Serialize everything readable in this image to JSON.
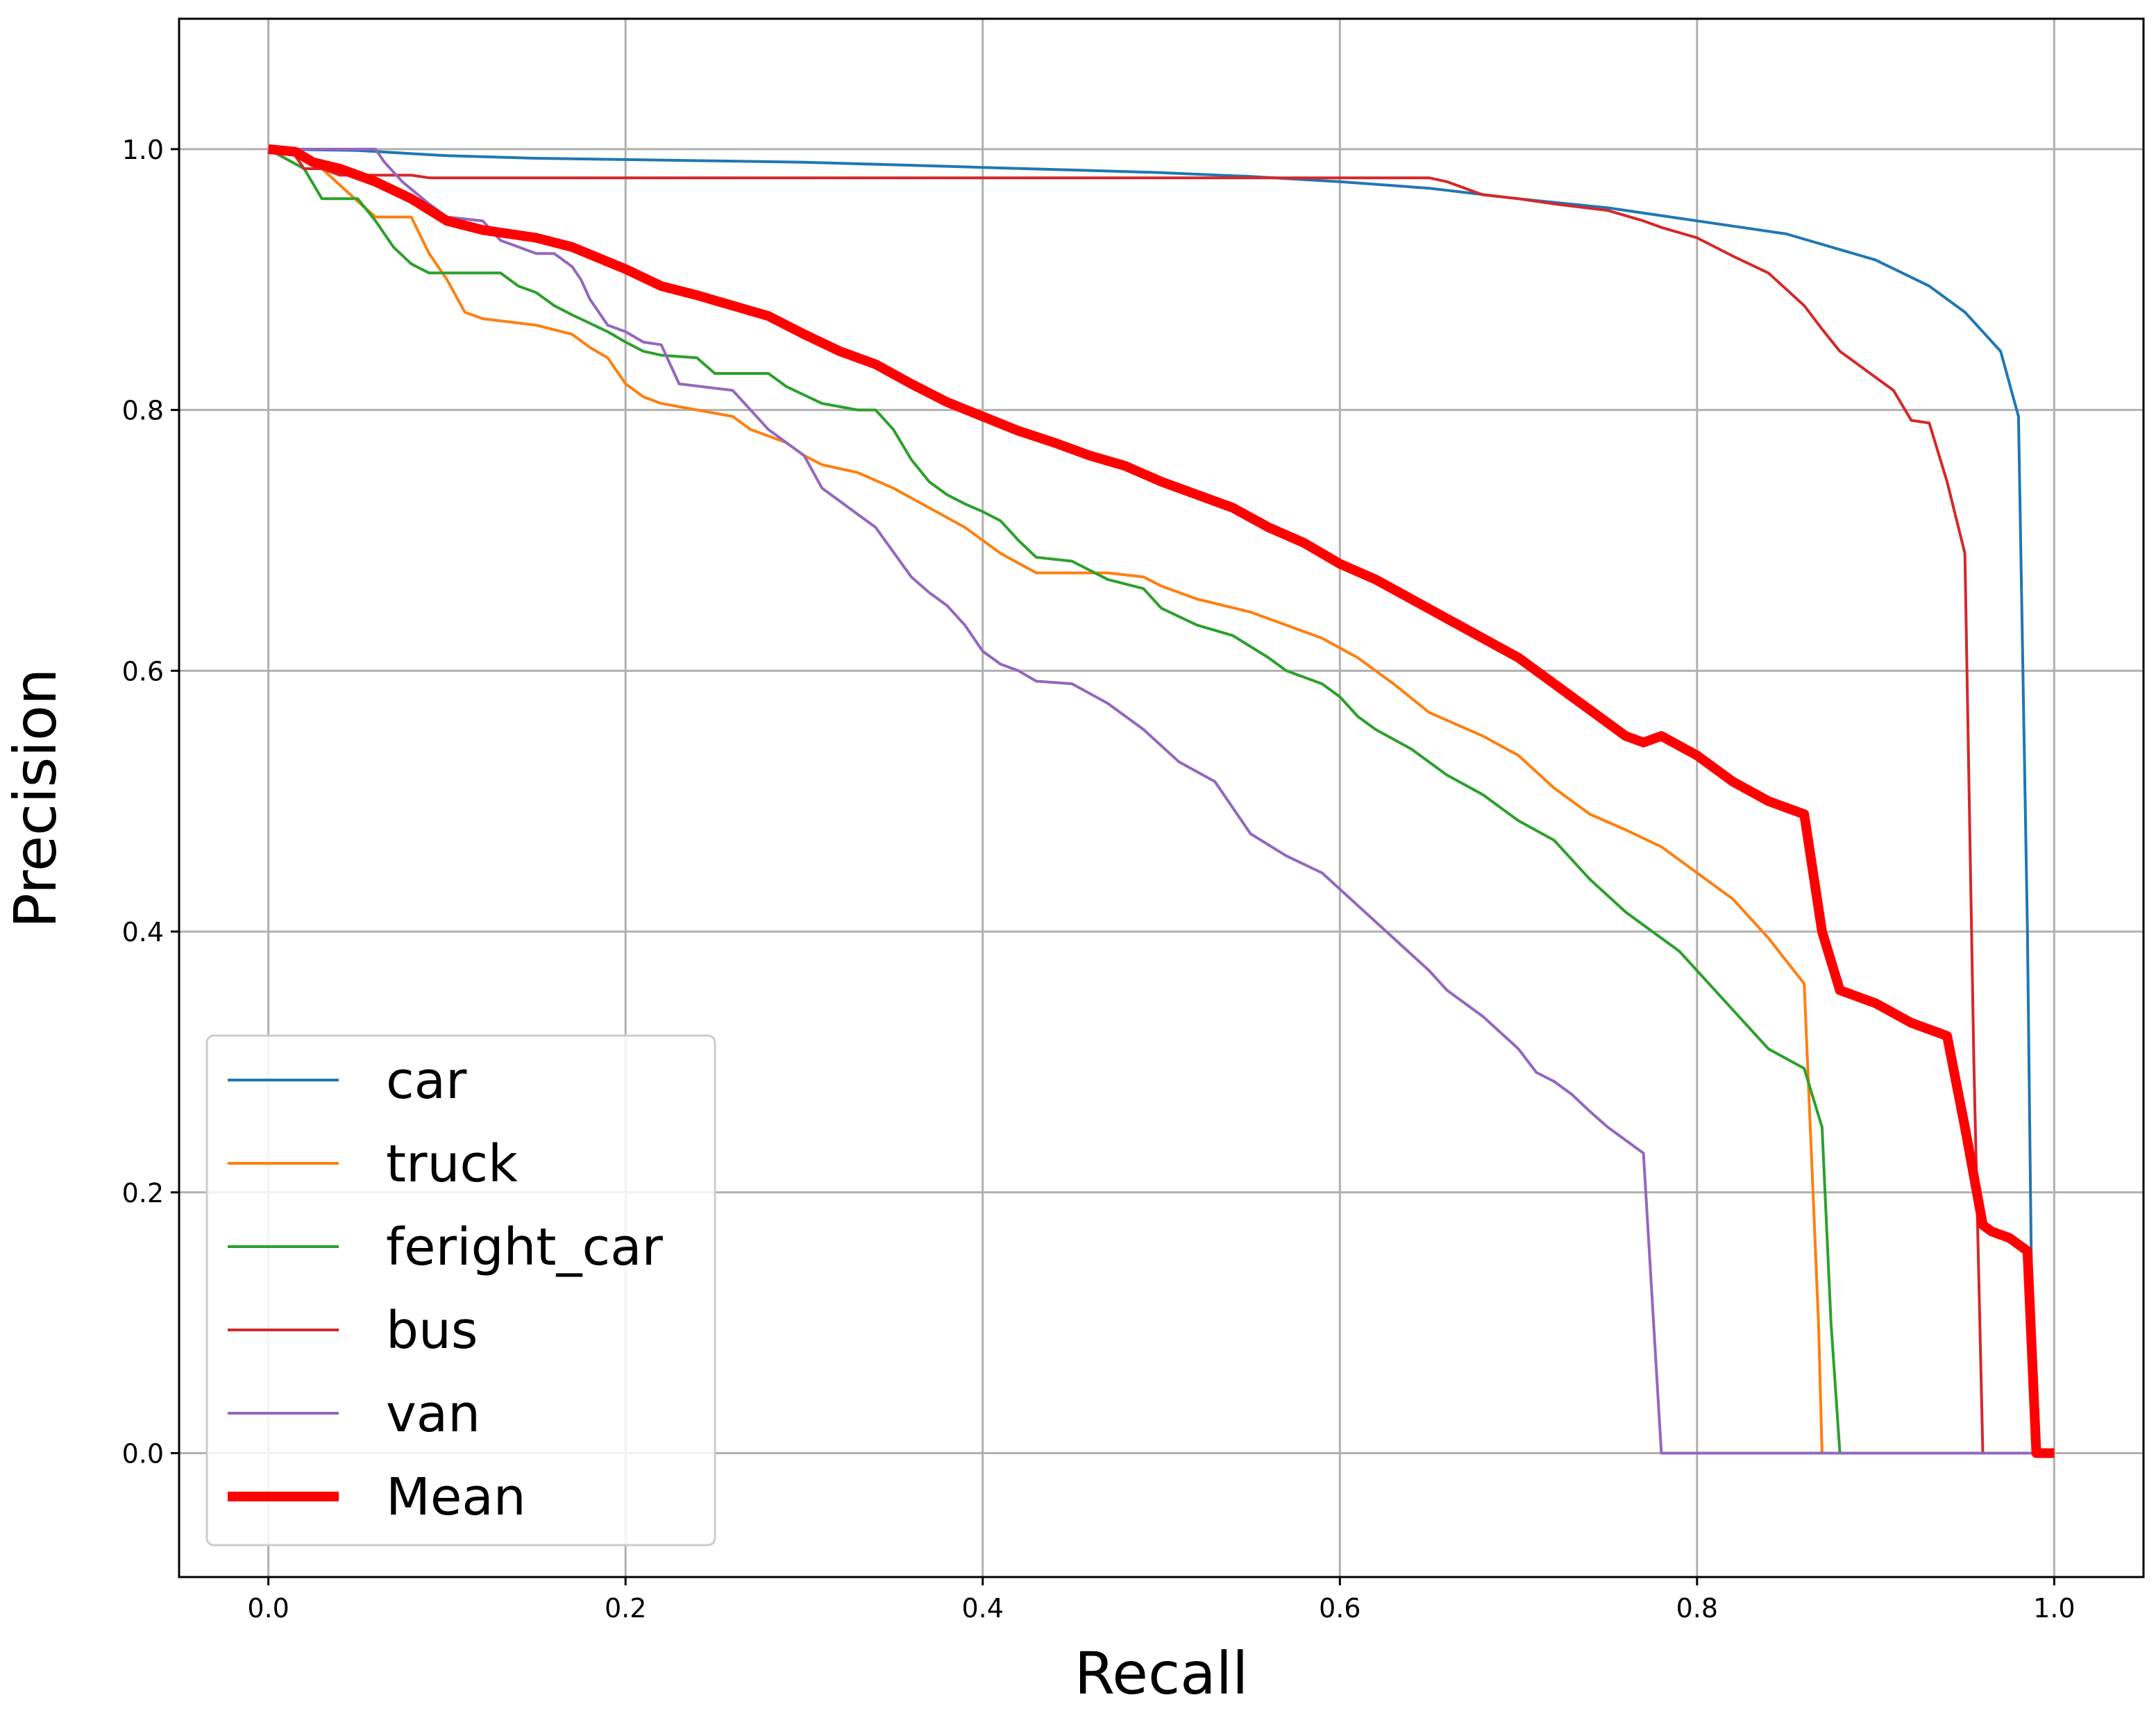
{
  "chart_data": {
    "type": "line",
    "title": "",
    "xlabel": "Recall",
    "ylabel": "Precision",
    "xlim": [
      -0.05,
      1.05
    ],
    "ylim": [
      -0.095,
      1.1
    ],
    "xticks": [
      "0.0",
      "0.2",
      "0.4",
      "0.6",
      "0.8",
      "1.0"
    ],
    "yticks": [
      "0.0",
      "0.2",
      "0.4",
      "0.6",
      "0.8",
      "1.0"
    ],
    "grid": true,
    "legend_position": "lower-left",
    "series": [
      {
        "name": "car",
        "color": "#1f77b4",
        "width": 4,
        "x": [
          0,
          0.05,
          0.1,
          0.15,
          0.2,
          0.25,
          0.3,
          0.35,
          0.4,
          0.45,
          0.5,
          0.55,
          0.6,
          0.65,
          0.7,
          0.75,
          0.8,
          0.85,
          0.9,
          0.93,
          0.95,
          0.97,
          0.98,
          0.985,
          0.988,
          0.99
        ],
        "y": [
          1.0,
          0.999,
          0.995,
          0.993,
          0.992,
          0.991,
          0.99,
          0.988,
          0.986,
          0.984,
          0.982,
          0.979,
          0.975,
          0.97,
          0.962,
          0.955,
          0.945,
          0.935,
          0.915,
          0.895,
          0.875,
          0.845,
          0.795,
          0.4,
          0.05,
          0.0
        ]
      },
      {
        "name": "truck",
        "color": "#ff7f0e",
        "width": 4,
        "x": [
          0,
          0.02,
          0.03,
          0.05,
          0.06,
          0.08,
          0.09,
          0.1,
          0.11,
          0.12,
          0.15,
          0.17,
          0.18,
          0.19,
          0.2,
          0.21,
          0.22,
          0.24,
          0.26,
          0.27,
          0.29,
          0.3,
          0.31,
          0.33,
          0.35,
          0.37,
          0.39,
          0.41,
          0.43,
          0.45,
          0.47,
          0.49,
          0.5,
          0.52,
          0.55,
          0.57,
          0.59,
          0.61,
          0.63,
          0.65,
          0.68,
          0.7,
          0.72,
          0.74,
          0.76,
          0.78,
          0.8,
          0.82,
          0.84,
          0.86,
          0.868,
          0.87,
          0.875,
          0.88,
          0.9,
          0.96,
          0.99,
          1.0
        ],
        "y": [
          1.0,
          0.985,
          0.985,
          0.96,
          0.948,
          0.948,
          0.92,
          0.9,
          0.875,
          0.87,
          0.865,
          0.858,
          0.848,
          0.84,
          0.82,
          0.81,
          0.805,
          0.8,
          0.795,
          0.785,
          0.775,
          0.765,
          0.758,
          0.752,
          0.74,
          0.725,
          0.71,
          0.69,
          0.675,
          0.675,
          0.675,
          0.672,
          0.665,
          0.655,
          0.645,
          0.635,
          0.625,
          0.61,
          0.59,
          0.568,
          0.55,
          0.535,
          0.51,
          0.49,
          0.478,
          0.465,
          0.445,
          0.425,
          0.395,
          0.36,
          0.1,
          0.0,
          0.0,
          0.0,
          0.0,
          0.0,
          0.0,
          0.0
        ]
      },
      {
        "name": "feright_car",
        "color": "#2ca02c",
        "width": 4,
        "x": [
          0,
          0.02,
          0.03,
          0.05,
          0.06,
          0.07,
          0.08,
          0.09,
          0.1,
          0.13,
          0.14,
          0.15,
          0.16,
          0.17,
          0.19,
          0.2,
          0.21,
          0.22,
          0.24,
          0.25,
          0.28,
          0.29,
          0.31,
          0.33,
          0.34,
          0.35,
          0.36,
          0.37,
          0.38,
          0.39,
          0.4,
          0.41,
          0.42,
          0.43,
          0.45,
          0.47,
          0.49,
          0.5,
          0.52,
          0.54,
          0.56,
          0.57,
          0.59,
          0.6,
          0.61,
          0.62,
          0.64,
          0.66,
          0.68,
          0.7,
          0.72,
          0.74,
          0.76,
          0.77,
          0.79,
          0.8,
          0.82,
          0.84,
          0.86,
          0.87,
          0.875,
          0.88,
          0.9,
          0.96,
          0.99,
          1.0
        ],
        "y": [
          1.0,
          0.985,
          0.962,
          0.962,
          0.945,
          0.925,
          0.912,
          0.905,
          0.905,
          0.905,
          0.895,
          0.89,
          0.88,
          0.873,
          0.86,
          0.852,
          0.845,
          0.842,
          0.84,
          0.828,
          0.828,
          0.818,
          0.805,
          0.8,
          0.8,
          0.785,
          0.762,
          0.745,
          0.735,
          0.728,
          0.722,
          0.715,
          0.7,
          0.687,
          0.684,
          0.67,
          0.663,
          0.648,
          0.635,
          0.627,
          0.61,
          0.6,
          0.59,
          0.58,
          0.565,
          0.555,
          0.54,
          0.52,
          0.505,
          0.485,
          0.47,
          0.44,
          0.415,
          0.405,
          0.385,
          0.37,
          0.34,
          0.31,
          0.295,
          0.25,
          0.1,
          0.0,
          0.0,
          0.0,
          0.0,
          0.0
        ]
      },
      {
        "name": "bus",
        "color": "#d62728",
        "width": 4,
        "x": [
          0,
          0.01,
          0.015,
          0.02,
          0.03,
          0.04,
          0.08,
          0.09,
          0.1,
          0.2,
          0.3,
          0.4,
          0.5,
          0.6,
          0.65,
          0.66,
          0.67,
          0.68,
          0.7,
          0.72,
          0.75,
          0.77,
          0.78,
          0.8,
          0.82,
          0.84,
          0.86,
          0.87,
          0.88,
          0.9,
          0.91,
          0.92,
          0.93,
          0.94,
          0.95,
          0.955,
          0.96,
          0.965,
          0.99
        ],
        "y": [
          1.0,
          1.0,
          0.995,
          0.985,
          0.985,
          0.98,
          0.98,
          0.978,
          0.978,
          0.978,
          0.978,
          0.978,
          0.978,
          0.978,
          0.978,
          0.975,
          0.97,
          0.965,
          0.962,
          0.958,
          0.953,
          0.945,
          0.94,
          0.932,
          0.918,
          0.905,
          0.88,
          0.862,
          0.845,
          0.825,
          0.815,
          0.792,
          0.79,
          0.745,
          0.69,
          0.3,
          0.0,
          0.0,
          0.0
        ]
      },
      {
        "name": "van",
        "color": "#9467bd",
        "width": 4,
        "x": [
          0,
          0.06,
          0.065,
          0.075,
          0.09,
          0.1,
          0.12,
          0.13,
          0.14,
          0.15,
          0.16,
          0.17,
          0.175,
          0.18,
          0.19,
          0.2,
          0.21,
          0.22,
          0.23,
          0.26,
          0.27,
          0.28,
          0.3,
          0.31,
          0.33,
          0.34,
          0.36,
          0.37,
          0.38,
          0.39,
          0.4,
          0.41,
          0.42,
          0.43,
          0.45,
          0.47,
          0.49,
          0.51,
          0.53,
          0.55,
          0.57,
          0.59,
          0.61,
          0.63,
          0.65,
          0.66,
          0.68,
          0.7,
          0.71,
          0.72,
          0.73,
          0.74,
          0.75,
          0.76,
          0.77,
          0.78,
          0.8,
          0.9,
          0.99
        ],
        "y": [
          1.0,
          1.0,
          0.99,
          0.975,
          0.958,
          0.948,
          0.945,
          0.93,
          0.925,
          0.92,
          0.92,
          0.91,
          0.9,
          0.885,
          0.865,
          0.86,
          0.852,
          0.85,
          0.82,
          0.815,
          0.8,
          0.785,
          0.765,
          0.74,
          0.72,
          0.71,
          0.672,
          0.66,
          0.65,
          0.635,
          0.615,
          0.605,
          0.6,
          0.592,
          0.59,
          0.575,
          0.555,
          0.53,
          0.515,
          0.475,
          0.458,
          0.445,
          0.42,
          0.395,
          0.37,
          0.355,
          0.335,
          0.31,
          0.292,
          0.285,
          0.275,
          0.262,
          0.25,
          0.24,
          0.23,
          0.0,
          0.0,
          0.0,
          0.0
        ]
      },
      {
        "name": "Mean",
        "color": "#ff0000",
        "width": 14,
        "x": [
          0,
          0.015,
          0.025,
          0.04,
          0.06,
          0.08,
          0.1,
          0.12,
          0.15,
          0.17,
          0.2,
          0.22,
          0.24,
          0.26,
          0.28,
          0.3,
          0.32,
          0.34,
          0.36,
          0.38,
          0.4,
          0.42,
          0.44,
          0.46,
          0.48,
          0.5,
          0.52,
          0.54,
          0.56,
          0.58,
          0.6,
          0.62,
          0.64,
          0.66,
          0.68,
          0.7,
          0.72,
          0.74,
          0.76,
          0.77,
          0.78,
          0.8,
          0.82,
          0.84,
          0.86,
          0.87,
          0.88,
          0.9,
          0.92,
          0.94,
          0.95,
          0.96,
          0.965,
          0.975,
          0.985,
          0.99,
          1.0
        ],
        "y": [
          1.0,
          0.998,
          0.99,
          0.985,
          0.975,
          0.962,
          0.945,
          0.938,
          0.932,
          0.925,
          0.908,
          0.895,
          0.888,
          0.88,
          0.872,
          0.858,
          0.845,
          0.835,
          0.82,
          0.806,
          0.795,
          0.784,
          0.775,
          0.765,
          0.757,
          0.745,
          0.735,
          0.725,
          0.71,
          0.698,
          0.682,
          0.67,
          0.655,
          0.64,
          0.625,
          0.61,
          0.59,
          0.57,
          0.55,
          0.545,
          0.55,
          0.535,
          0.515,
          0.5,
          0.49,
          0.4,
          0.355,
          0.345,
          0.33,
          0.32,
          0.25,
          0.175,
          0.17,
          0.165,
          0.155,
          0.0,
          0.0
        ]
      }
    ]
  }
}
